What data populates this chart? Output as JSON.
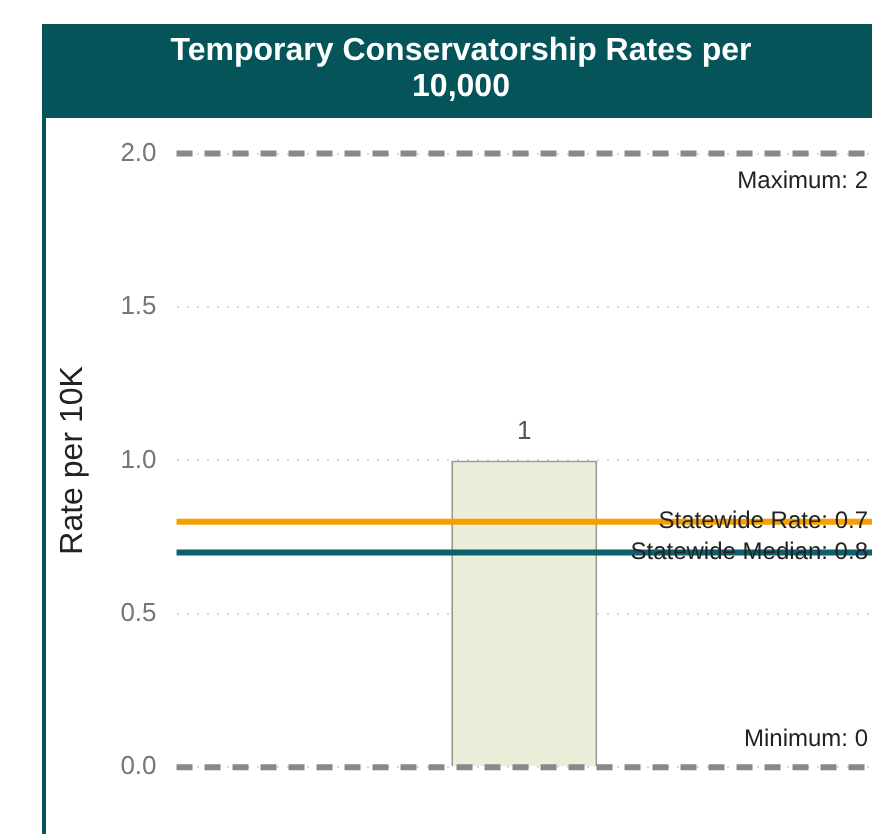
{
  "chart_data": {
    "type": "bar",
    "title": "Temporary Conservatorship Rates per 10,000",
    "ylabel": "Rate per 10K",
    "categories": [
      null
    ],
    "values": [
      1
    ],
    "color": "#e8eed8",
    "data_labels": true,
    "ylim": [
      0,
      2
    ],
    "yticks": [
      {
        "value": 0,
        "label": "0.0"
      },
      {
        "value": 0.5,
        "label": "0.5"
      },
      {
        "value": 1,
        "label": "1.0"
      },
      {
        "value": 1.5,
        "label": "1.5"
      },
      {
        "value": 2,
        "label": "2.0"
      }
    ],
    "grid": "y",
    "legend": false,
    "ref_lines": [
      {
        "axis": "y",
        "value": 2,
        "label": "Maximum: 2",
        "color": "#888888",
        "line_style": "dashed"
      },
      {
        "axis": "y",
        "value": 0.8,
        "color": "#f5a000",
        "line_style": "solid"
      },
      {
        "axis": "y",
        "value": 0.7,
        "color": "#0d5f6b",
        "line_style": "solid"
      },
      {
        "axis": "y",
        "value": 0,
        "label": "Minimum: 0",
        "color": "#888888",
        "line_style": "dashed"
      }
    ],
    "annotations": [
      {
        "text": "Statewide Rate: 0.7",
        "y": 0.8
      },
      {
        "text": "Statewide Median: 0.8",
        "y": 0.7
      }
    ]
  }
}
